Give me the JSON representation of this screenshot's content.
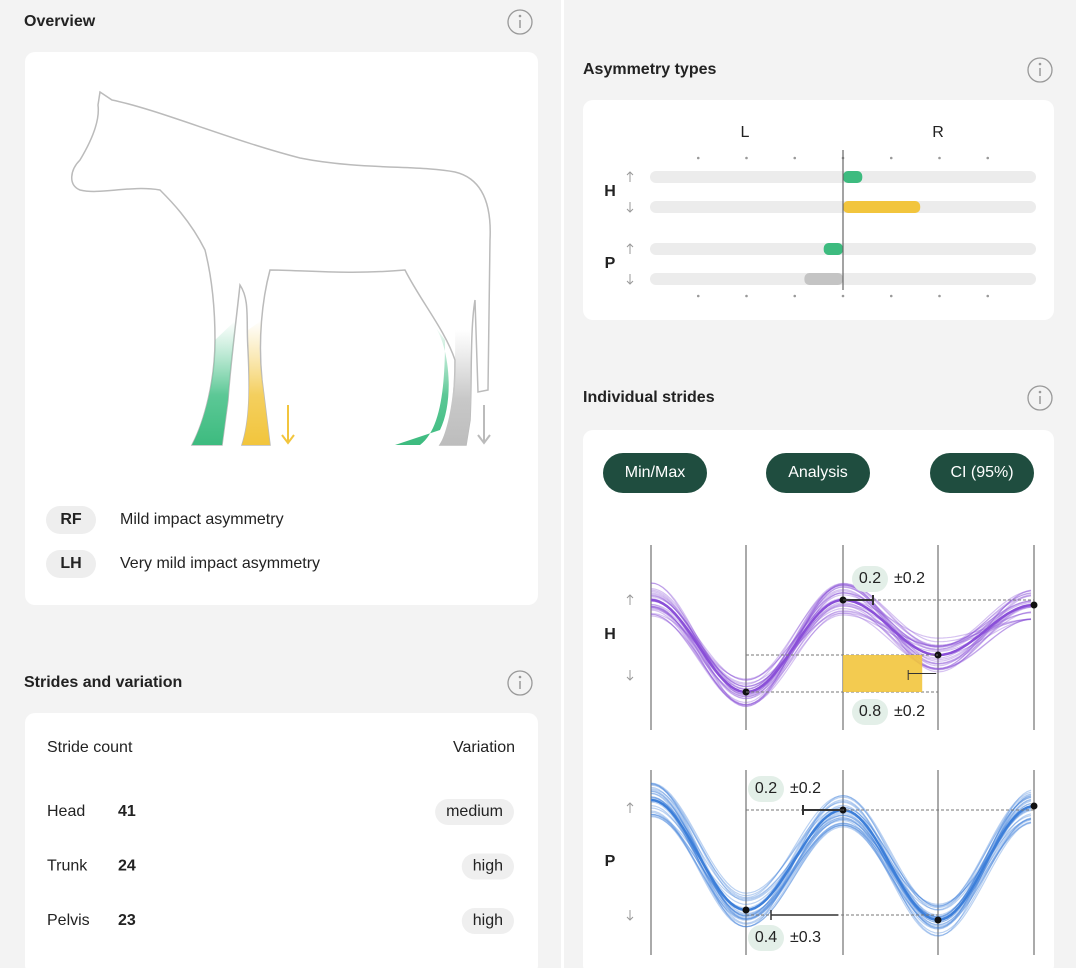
{
  "overview": {
    "title": "Overview",
    "findings": [
      {
        "code": "RF",
        "text": "Mild impact asymmetry"
      },
      {
        "code": "LH",
        "text": "Very mild impact asymmetry"
      }
    ]
  },
  "strides_variation": {
    "title": "Strides and variation",
    "count_header": "Stride count",
    "variation_header": "Variation",
    "rows": [
      {
        "name": "Head",
        "count": 41,
        "variation": "medium"
      },
      {
        "name": "Trunk",
        "count": 24,
        "variation": "high"
      },
      {
        "name": "Pelvis",
        "count": 23,
        "variation": "high"
      }
    ]
  },
  "asymmetry_types": {
    "title": "Asymmetry types",
    "left_label": "L",
    "right_label": "R",
    "xlim": [
      -2,
      2
    ],
    "xticks": [
      -1.5,
      -1,
      -0.5,
      0,
      0.5,
      1,
      1.5
    ],
    "groups": [
      {
        "label": "H",
        "bars": [
          {
            "value": 0.2,
            "color": "#3dbb7f"
          },
          {
            "value": 0.8,
            "color": "#f2c53d"
          }
        ]
      },
      {
        "label": "P",
        "bars": [
          {
            "value": -0.2,
            "color": "#3dbb7f"
          },
          {
            "value": -0.4,
            "color": "#c4c4c4"
          }
        ]
      }
    ]
  },
  "individual_strides": {
    "title": "Individual strides",
    "buttons": [
      "Min/Max",
      "Analysis",
      "CI (95%)"
    ],
    "charts": [
      {
        "label": "H",
        "color": "#8a4fd8",
        "annotations": [
          {
            "value": 0.2,
            "error": "±0.2"
          },
          {
            "value": 0.8,
            "error": "±0.2"
          }
        ]
      },
      {
        "label": "P",
        "color": "#3d7fd9",
        "annotations": [
          {
            "value": 0.2,
            "error": "±0.2"
          },
          {
            "value": 0.4,
            "error": "±0.3"
          }
        ]
      }
    ]
  }
}
